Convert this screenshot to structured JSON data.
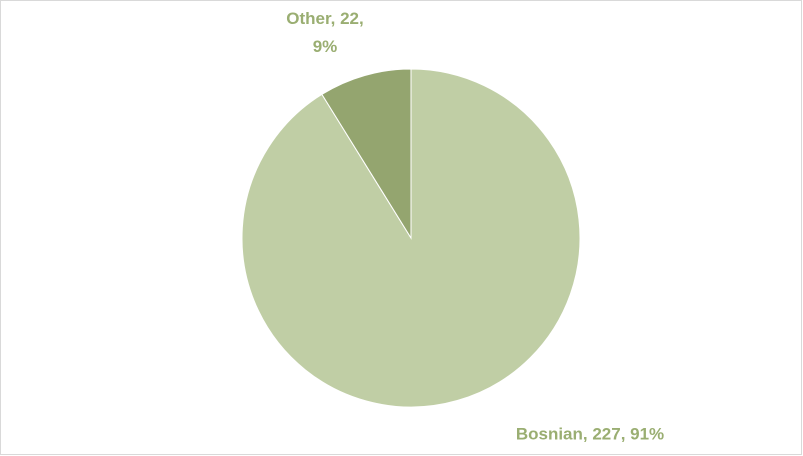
{
  "chart_data": {
    "type": "pie",
    "categories": [
      "Bosnian",
      "Other"
    ],
    "values": [
      227,
      22
    ],
    "value_labels": [
      "Bosnian, 227, 91%",
      "Other, 22, 9%"
    ],
    "colors": [
      "#c0cea5",
      "#94a56f"
    ],
    "label_color": "#9aae72"
  }
}
